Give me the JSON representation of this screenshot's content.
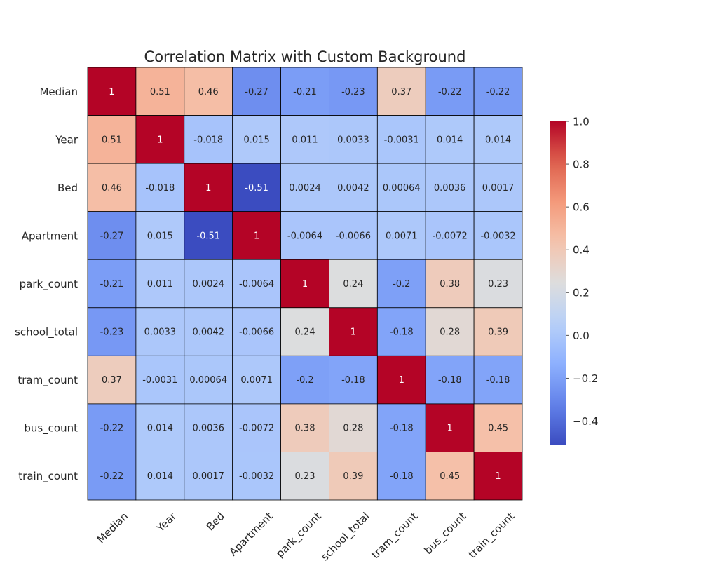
{
  "chart_data": {
    "type": "heatmap",
    "title": "Correlation Matrix with Custom Background",
    "xlabel": "",
    "ylabel": "",
    "colormap": "coolwarm",
    "vmin": -0.51,
    "vmax": 1.0,
    "grid_line_color": "#000000",
    "labels": [
      "Median",
      "Year",
      "Bed",
      "Apartment",
      "park_count",
      "school_total",
      "tram_count",
      "bus_count",
      "train_count"
    ],
    "matrix": [
      [
        1,
        0.51,
        0.46,
        -0.27,
        -0.21,
        -0.23,
        0.37,
        -0.22,
        -0.22
      ],
      [
        0.51,
        1,
        -0.018,
        0.015,
        0.011,
        0.0033,
        -0.0031,
        0.014,
        0.014
      ],
      [
        0.46,
        -0.018,
        1,
        -0.51,
        0.0024,
        0.0042,
        0.00064,
        0.0036,
        0.0017
      ],
      [
        -0.27,
        0.015,
        -0.51,
        1,
        -0.0064,
        -0.0066,
        0.0071,
        -0.0072,
        -0.0032
      ],
      [
        -0.21,
        0.011,
        0.0024,
        -0.0064,
        1,
        0.24,
        -0.2,
        0.38,
        0.23
      ],
      [
        -0.23,
        0.0033,
        0.0042,
        -0.0066,
        0.24,
        1,
        -0.18,
        0.28,
        0.39
      ],
      [
        0.37,
        -0.0031,
        0.00064,
        0.0071,
        -0.2,
        -0.18,
        1,
        -0.18,
        -0.18
      ],
      [
        -0.22,
        0.014,
        0.0036,
        -0.0072,
        0.38,
        0.28,
        -0.18,
        1,
        0.45
      ],
      [
        -0.22,
        0.014,
        0.0017,
        -0.0032,
        0.23,
        0.39,
        -0.18,
        0.45,
        1
      ]
    ],
    "annotations": [
      [
        "1",
        "0.51",
        "0.46",
        "-0.27",
        "-0.21",
        "-0.23",
        "0.37",
        "-0.22",
        "-0.22"
      ],
      [
        "0.51",
        "1",
        "-0.018",
        "0.015",
        "0.011",
        "0.0033",
        "-0.0031",
        "0.014",
        "0.014"
      ],
      [
        "0.46",
        "-0.018",
        "1",
        "-0.51",
        "0.0024",
        "0.0042",
        "0.00064",
        "0.0036",
        "0.0017"
      ],
      [
        "-0.27",
        "0.015",
        "-0.51",
        "1",
        "-0.0064",
        "-0.0066",
        "0.0071",
        "-0.0072",
        "-0.0032"
      ],
      [
        "-0.21",
        "0.011",
        "0.0024",
        "-0.0064",
        "1",
        "0.24",
        "-0.2",
        "0.38",
        "0.23"
      ],
      [
        "-0.23",
        "0.0033",
        "0.0042",
        "-0.0066",
        "0.24",
        "1",
        "-0.18",
        "0.28",
        "0.39"
      ],
      [
        "0.37",
        "-0.0031",
        "0.00064",
        "0.0071",
        "-0.2",
        "-0.18",
        "1",
        "-0.18",
        "-0.18"
      ],
      [
        "-0.22",
        "0.014",
        "0.0036",
        "-0.0072",
        "0.38",
        "0.28",
        "-0.18",
        "1",
        "0.45"
      ],
      [
        "-0.22",
        "0.014",
        "0.0017",
        "-0.0032",
        "0.23",
        "0.39",
        "-0.18",
        "0.45",
        "1"
      ]
    ],
    "colorbar": {
      "ticks": [
        -0.4,
        -0.2,
        0.0,
        0.2,
        0.4,
        0.6,
        0.8,
        1.0
      ],
      "tick_labels": [
        "−0.4",
        "−0.2",
        "0.0",
        "0.2",
        "0.4",
        "0.6",
        "0.8",
        "1.0"
      ],
      "placement": "right"
    }
  }
}
